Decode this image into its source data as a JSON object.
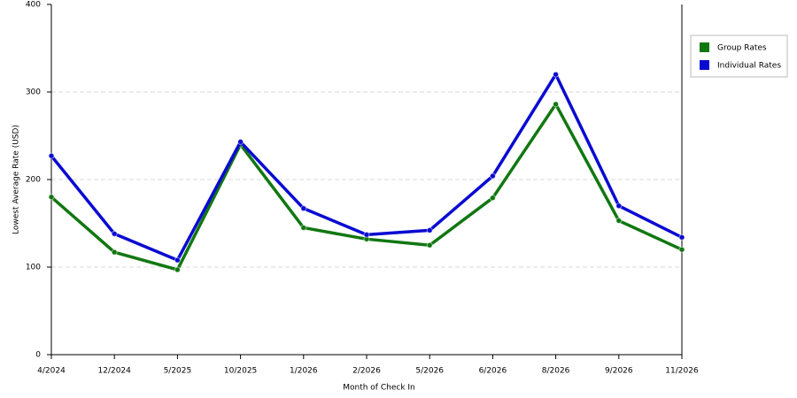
{
  "chart_data": {
    "type": "line",
    "x_label": "Month of Check In",
    "y_label": "Lowest Average Rate (USD)",
    "categories": [
      "4/2024",
      "12/2024",
      "5/2025",
      "10/2025",
      "1/2026",
      "2/2026",
      "5/2026",
      "6/2026",
      "8/2026",
      "9/2026",
      "11/2026"
    ],
    "series": [
      {
        "name": "Group Rates",
        "color": "#117711",
        "values": [
          180,
          117,
          97,
          240,
          145,
          132,
          125,
          179,
          286,
          153,
          120
        ]
      },
      {
        "name": "Individual Rates",
        "color": "#0a0ad2",
        "values": [
          227,
          138,
          108,
          243,
          167,
          137,
          142,
          204,
          320,
          170,
          134
        ]
      }
    ],
    "ylim": [
      0,
      400
    ],
    "yticks": [
      0,
      100,
      200,
      300,
      400
    ],
    "grid": true,
    "legend": "right"
  }
}
